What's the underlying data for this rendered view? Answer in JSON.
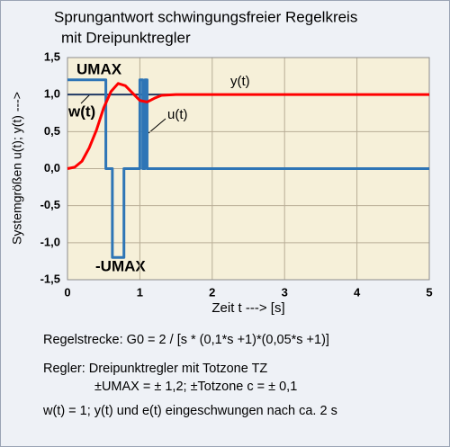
{
  "chart_data": {
    "type": "line",
    "title": [
      "Sprungantwort schwingungsfreier Regelkreis",
      "mit Dreipunktregler"
    ],
    "xlabel": "Zeit t ---> [s]",
    "ylabel": "Systemgrößen  u(t); y(t) --->",
    "xlim": [
      0,
      5
    ],
    "xticks": [
      0,
      1,
      2,
      3,
      4,
      5
    ],
    "ylim": [
      -1.5,
      1.5
    ],
    "yticks": [
      {
        "value": -1.5,
        "label": "-1,5"
      },
      {
        "value": -1.0,
        "label": "-1,0"
      },
      {
        "value": -0.5,
        "label": "-0,5"
      },
      {
        "value": 0,
        "label": "0,0"
      },
      {
        "value": 0.5,
        "label": "0,5"
      },
      {
        "value": 1.0,
        "label": "1,0"
      },
      {
        "value": 1.5,
        "label": "1,5"
      }
    ],
    "grid": true,
    "series": [
      {
        "color": "#1f3864",
        "x": [
          0,
          5
        ],
        "values": [
          1,
          1
        ]
      },
      {
        "color": "#2e75b6",
        "x": [
          0,
          0.53,
          0.53,
          0.62,
          0.62,
          0.78,
          0.78,
          1.0,
          1.0,
          1.04,
          1.04,
          1.07,
          1.07,
          1.1,
          1.1,
          5
        ],
        "values": [
          1.2,
          1.2,
          0,
          0,
          -1.2,
          -1.2,
          0,
          0,
          1.2,
          1.2,
          0,
          0,
          1.2,
          1.2,
          0,
          0
        ]
      },
      {
        "color": "#ff0000",
        "x": [
          0,
          0.1,
          0.2,
          0.3,
          0.4,
          0.5,
          0.6,
          0.7,
          0.8,
          0.9,
          1.0,
          1.1,
          1.2,
          1.3,
          1.5,
          2,
          5
        ],
        "values": [
          0,
          0.02,
          0.1,
          0.28,
          0.52,
          0.82,
          1.04,
          1.15,
          1.12,
          1.02,
          0.92,
          0.9,
          0.95,
          0.99,
          1.0,
          1.0,
          1.0
        ]
      }
    ],
    "annotations": [
      "UMAX",
      "w(t)",
      "y(t)",
      "u(t)",
      "-UMAX"
    ],
    "notes": [
      "Regelstrecke:  G0 = 2 / [s * (0,1*s +1)*(0,05*s +1)]",
      "Regler: Dreipunktregler mit Totzone TZ",
      "±UMAX = ± 1,2;  ±Totzone c = ± 0,1",
      "w(t) = 1;    y(t) und e(t) eingeschwungen nach ca. 2 s"
    ]
  }
}
